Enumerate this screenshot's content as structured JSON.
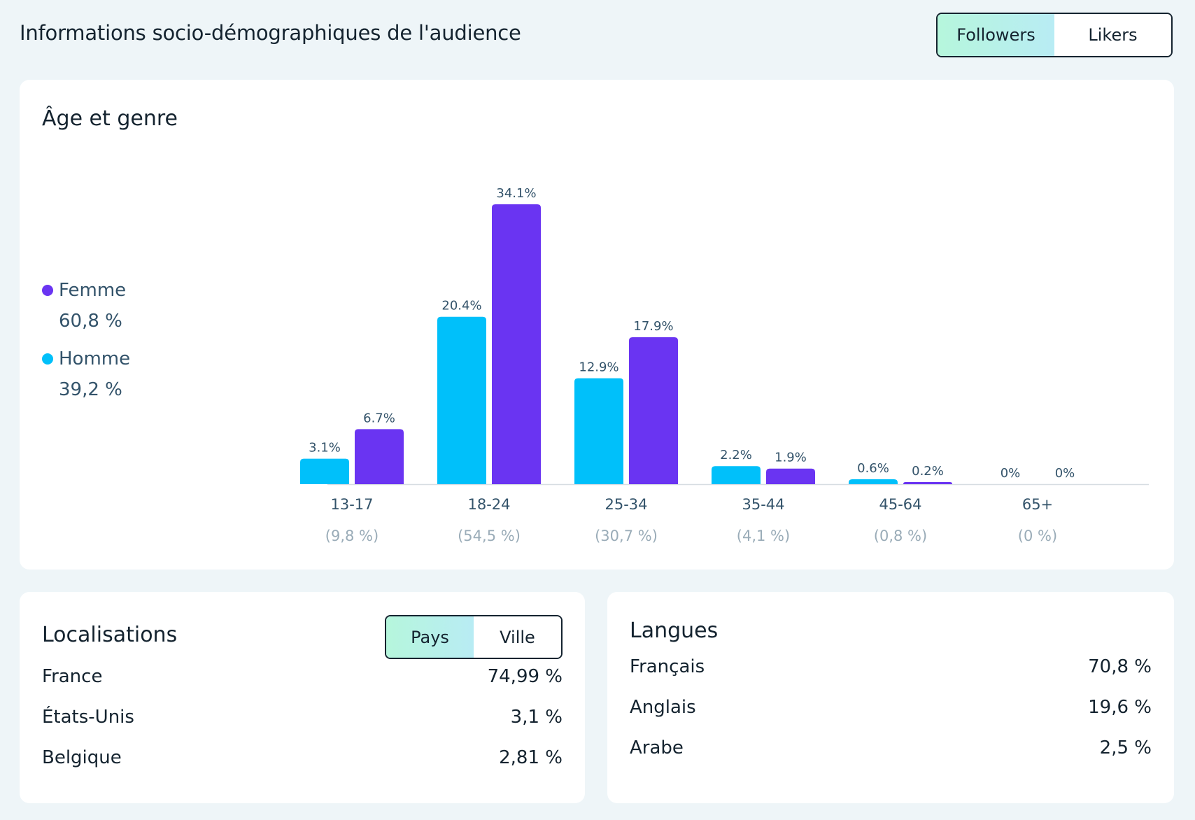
{
  "header": {
    "title": "Informations socio-démographiques de l'audience",
    "toggle": {
      "options": [
        "Followers",
        "Likers"
      ],
      "selected": "Followers"
    }
  },
  "age_gender": {
    "title": "Âge et genre",
    "legend": [
      {
        "label": "Femme",
        "value": "60,8 %",
        "color": "#6a34f2"
      },
      {
        "label": "Homme",
        "value": "39,2 %",
        "color": "#00c0fa"
      }
    ]
  },
  "chart_data": {
    "type": "bar",
    "categories": [
      "13-17",
      "18-24",
      "25-34",
      "35-44",
      "45-64",
      "65+"
    ],
    "category_totals": [
      "(9,8 %)",
      "(54,5 %)",
      "(30,7 %)",
      "(4,1 %)",
      "(0,8 %)",
      "(0 %)"
    ],
    "series": [
      {
        "name": "Homme",
        "color": "#00c0fa",
        "values": [
          3.1,
          20.4,
          12.9,
          2.2,
          0.6,
          0
        ],
        "labels": [
          "3.1%",
          "20.4%",
          "12.9%",
          "2.2%",
          "0.6%",
          "0%"
        ]
      },
      {
        "name": "Femme",
        "color": "#6a34f2",
        "values": [
          6.7,
          34.1,
          17.9,
          1.9,
          0.2,
          0
        ],
        "labels": [
          "6.7%",
          "34.1%",
          "17.9%",
          "1.9%",
          "0.2%",
          "0%"
        ]
      }
    ],
    "ylim": [
      0,
      34.1
    ],
    "grid": false,
    "legend_position": "left"
  },
  "locations": {
    "title": "Localisations",
    "toggle": {
      "options": [
        "Pays",
        "Ville"
      ],
      "selected": "Pays"
    },
    "rows": [
      {
        "name": "France",
        "value": "74,99 %"
      },
      {
        "name": "États-Unis",
        "value": "3,1 %"
      },
      {
        "name": "Belgique",
        "value": "2,81 %"
      }
    ]
  },
  "languages": {
    "title": "Langues",
    "rows": [
      {
        "name": "Français",
        "value": "70,8 %"
      },
      {
        "name": "Anglais",
        "value": "19,6 %"
      },
      {
        "name": "Arabe",
        "value": "2,5 %"
      }
    ]
  }
}
